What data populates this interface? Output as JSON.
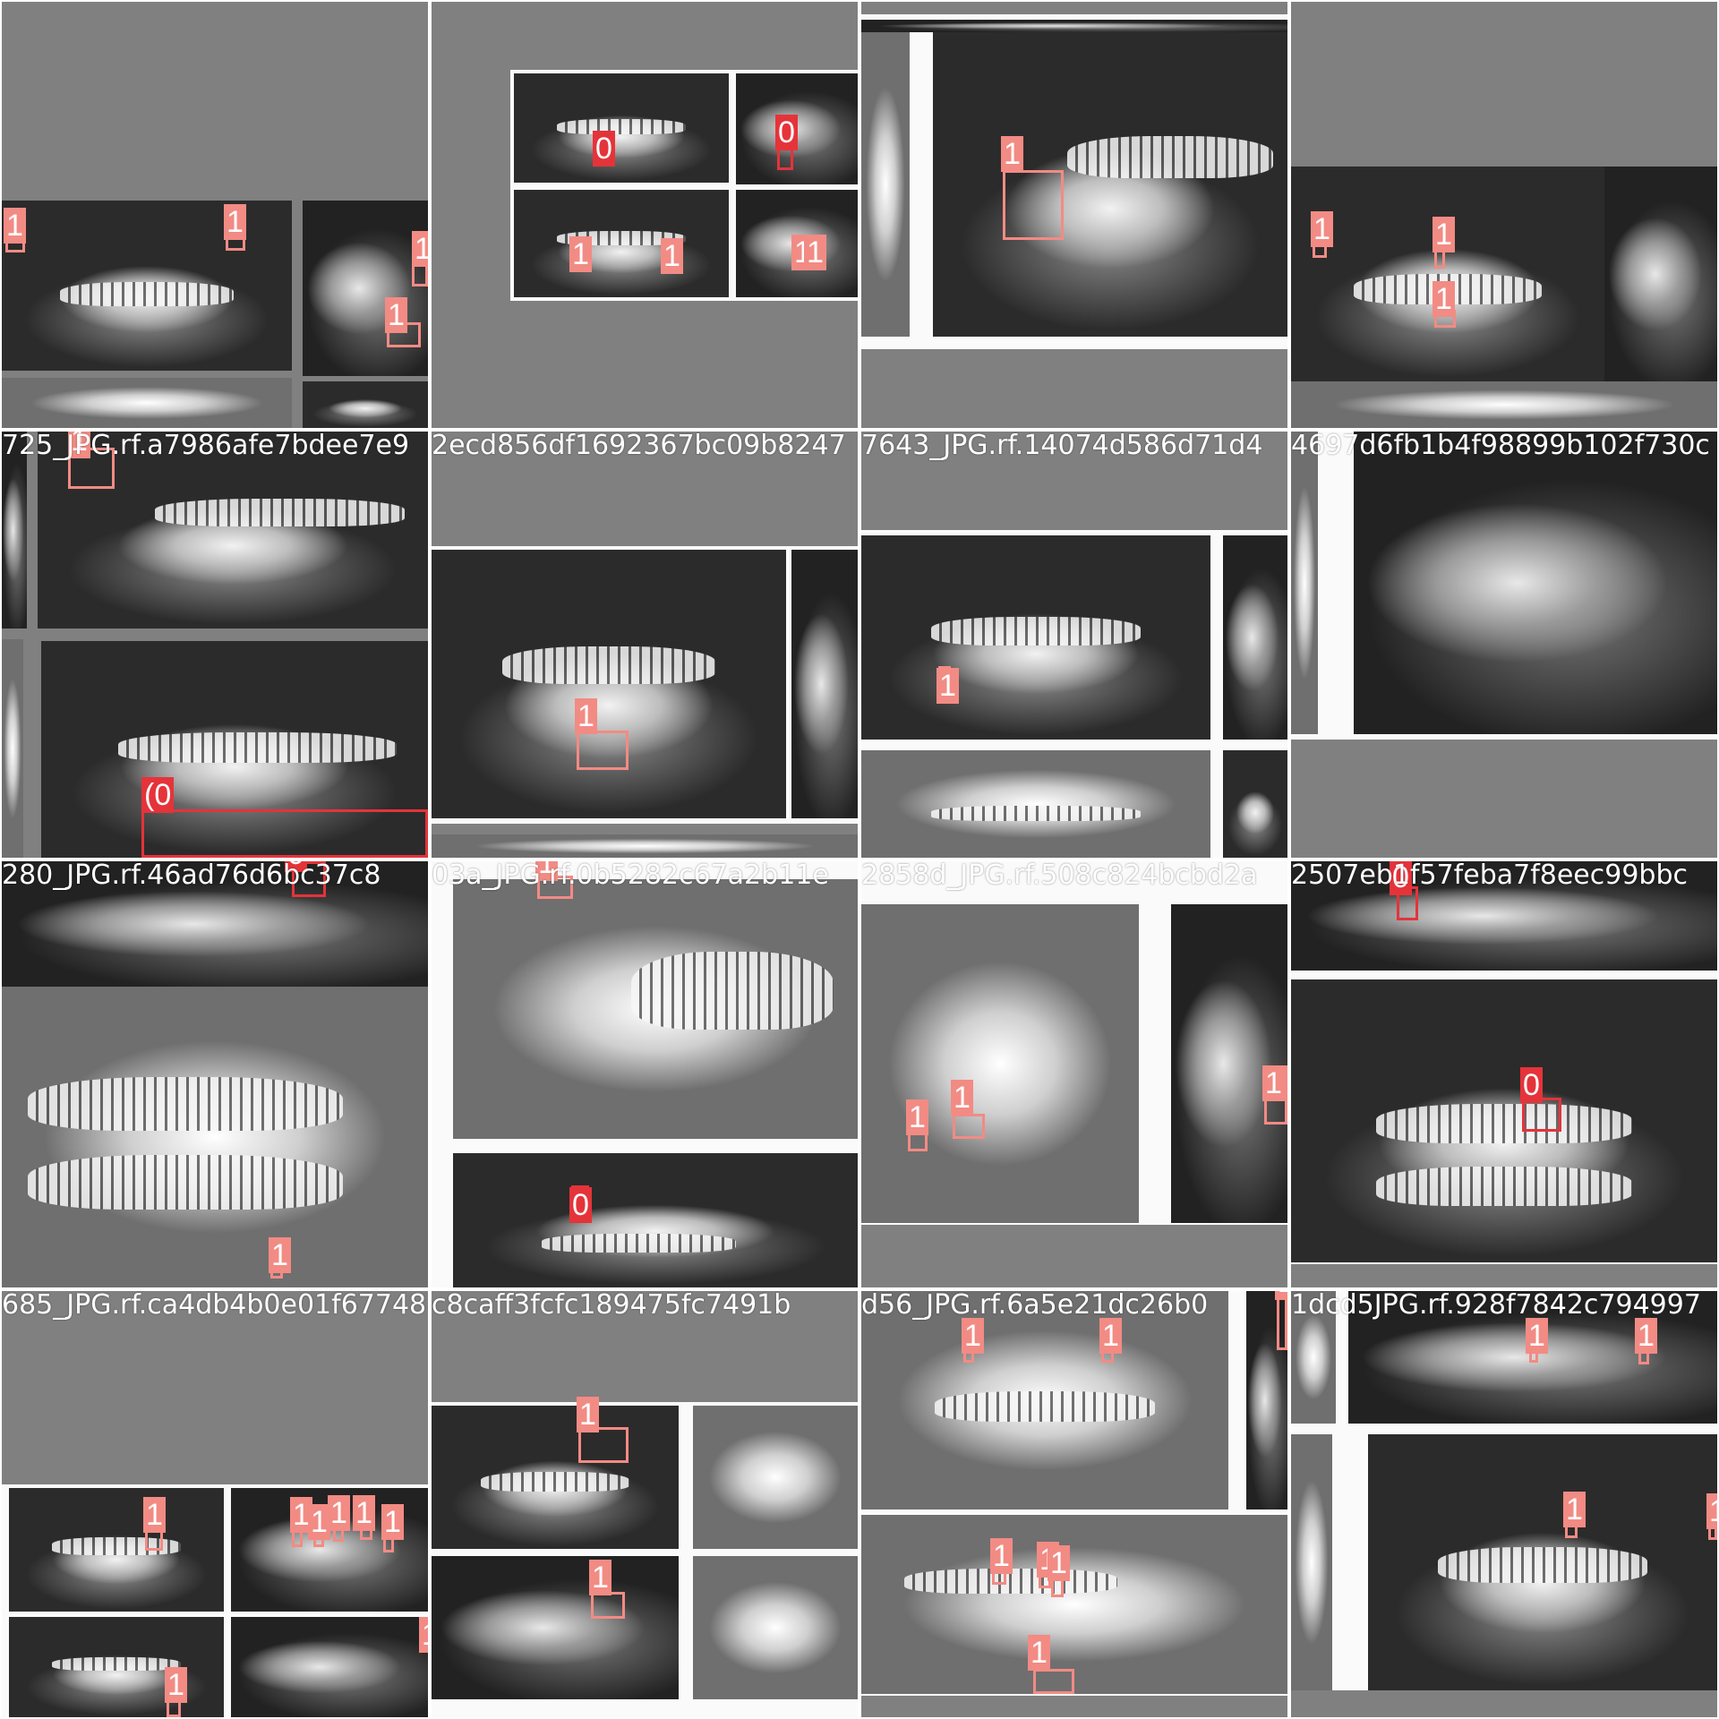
{
  "mosaic": {
    "title": "",
    "filename_labels": [
      "725_JPG.rf.a7986afe7bdee7e9",
      "2ecd856df1692367bc09b8247",
      "7643_JPG.rf.14074d586d71d4",
      "4697d6fb1b4f98899b102f730c",
      "280_JPG.rf.46ad76d6bc37c8",
      "03a_JPG.rf.0b5282c67a2b11e",
      "2858d_JPG.rf.508c824bcbd2a",
      "2507eb1f57feba7f8eec99bbc",
      "685_JPG.rf.ca4db4b0e01f67748",
      "c8caff3fcfc189475fc7491b",
      "d56_JPG.rf.6a5e21dc26b0",
      "1dcd5JPG.rf.928f7842c794997"
    ],
    "class_labels": {
      "c0": "0",
      "c1": "1"
    },
    "colors": {
      "class0": "#e5333a",
      "class1": "#f28b84",
      "pad": "#808080"
    }
  }
}
